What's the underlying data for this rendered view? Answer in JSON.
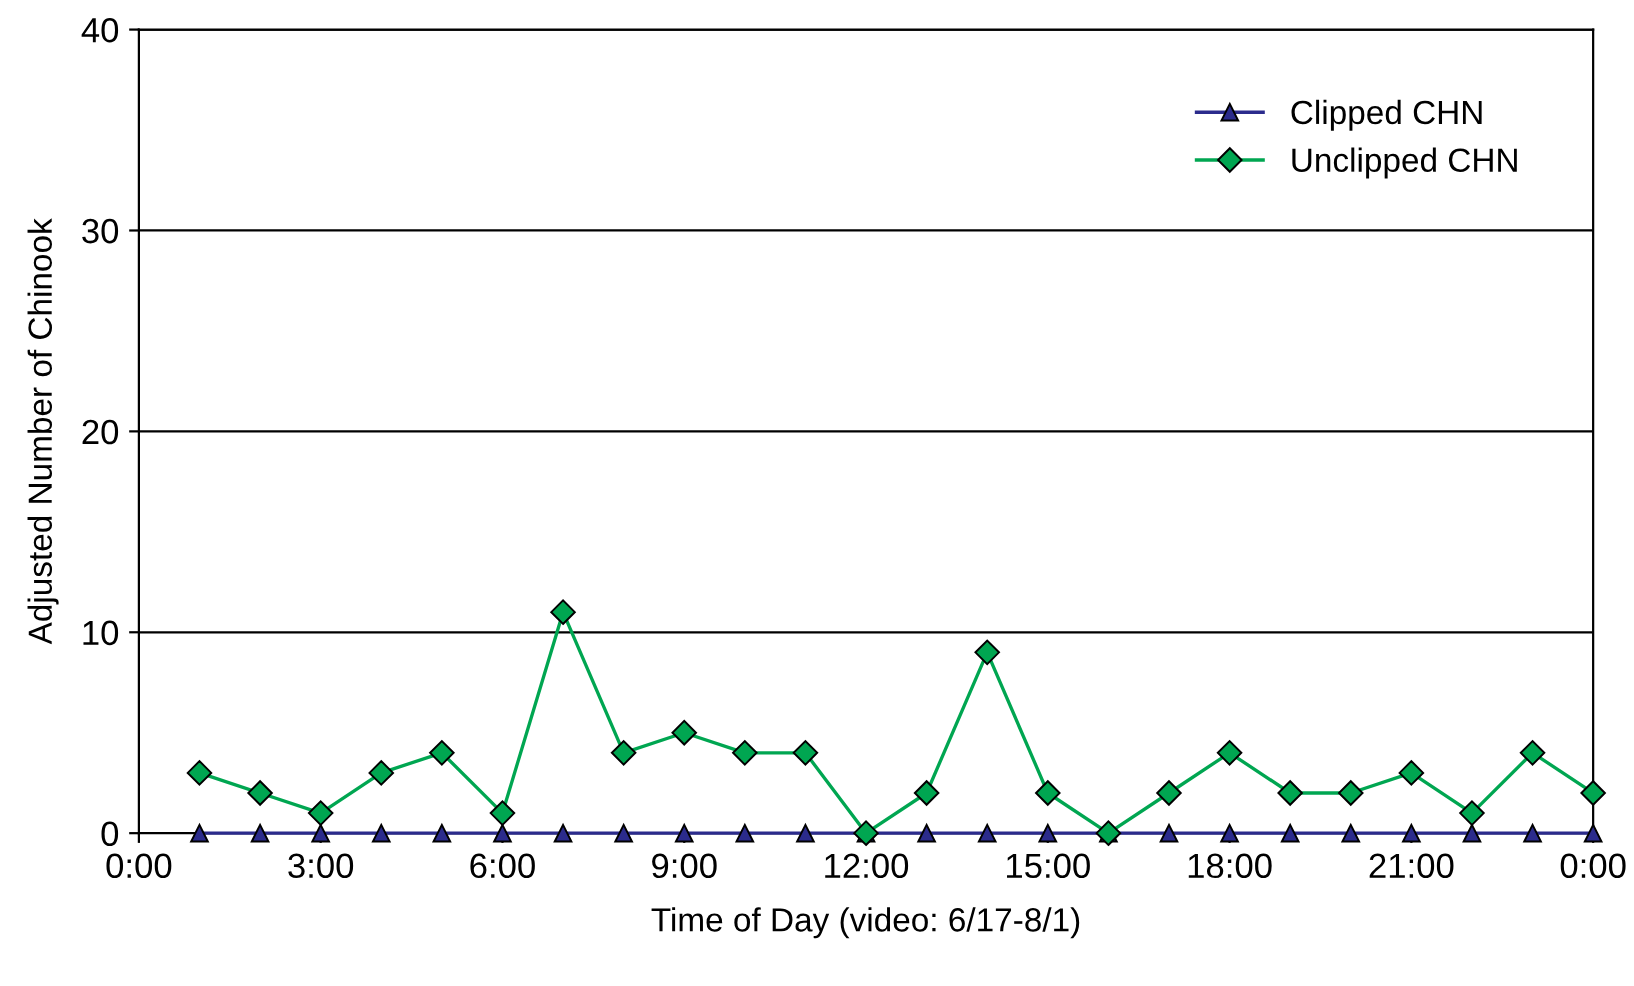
{
  "chart_data": {
    "type": "line",
    "xlabel": "Time of Day (video: 6/17-8/1)",
    "ylabel": "Adjusted Number of Chinook",
    "x": [
      1,
      2,
      3,
      4,
      5,
      6,
      7,
      8,
      9,
      10,
      11,
      12,
      13,
      14,
      15,
      16,
      17,
      18,
      19,
      20,
      21,
      22,
      23,
      24
    ],
    "series": [
      {
        "name": "Clipped CHN",
        "color": "#2b2b8c",
        "marker": "triangle",
        "values": [
          0,
          0,
          0,
          0,
          0,
          0,
          0,
          0,
          0,
          0,
          0,
          0,
          0,
          0,
          0,
          0,
          0,
          0,
          0,
          0,
          0,
          0,
          0,
          0
        ]
      },
      {
        "name": "Unclipped CHN",
        "color": "#00a651",
        "marker": "diamond",
        "values": [
          3,
          2,
          1,
          3,
          4,
          1,
          11,
          4,
          5,
          4,
          4,
          0,
          2,
          9,
          2,
          0,
          2,
          4,
          2,
          2,
          3,
          1,
          4,
          2
        ]
      }
    ],
    "xlim": [
      0,
      24
    ],
    "xticks": [
      {
        "value": 0,
        "label": "0:00"
      },
      {
        "value": 3,
        "label": "3:00"
      },
      {
        "value": 6,
        "label": "6:00"
      },
      {
        "value": 9,
        "label": "9:00"
      },
      {
        "value": 12,
        "label": "12:00"
      },
      {
        "value": 15,
        "label": "15:00"
      },
      {
        "value": 18,
        "label": "18:00"
      },
      {
        "value": 21,
        "label": "21:00"
      },
      {
        "value": 24,
        "label": "0:00"
      }
    ],
    "ylim": [
      0,
      40
    ],
    "yticks": [
      0,
      10,
      20,
      30,
      40
    ],
    "grid": "y",
    "legend": "top right",
    "line_style": "solid"
  }
}
